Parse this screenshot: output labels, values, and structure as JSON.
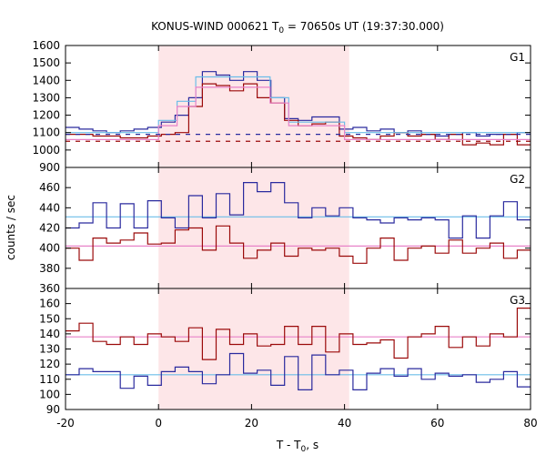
{
  "chart_data": {
    "type": "line",
    "title": "KONUS-WIND 000621 T",
    "title_sub": "0",
    "title_rest": " = 70650s UT (19:37:30.000)",
    "xlabel": "T - T",
    "xlabel_sub": "0",
    "xlabel_rest": ", s",
    "ylabel": "counts / sec",
    "xlim": [
      -20,
      80
    ],
    "xticks": [
      -20,
      0,
      20,
      40,
      60,
      80
    ],
    "highlight_interval": [
      0,
      41
    ],
    "colors": {
      "highlight": "#fde6e8",
      "blue": "#2a2a9e",
      "darkred": "#9b0a0a",
      "lightblue": "#6bbde8",
      "pink": "#e882c8"
    },
    "panels": [
      {
        "label": "G1",
        "ylim": [
          900,
          1600
        ],
        "yticks": [
          900,
          1000,
          1100,
          1200,
          1300,
          1400,
          1500,
          1600
        ],
        "dashed_levels": [
          {
            "color": "blue",
            "value": 1090
          },
          {
            "color": "darkred",
            "value": 1050
          }
        ],
        "series": [
          {
            "color": "blue",
            "step": 2.944,
            "x0": -20,
            "values": [
              1130,
              1120,
              1110,
              1100,
              1110,
              1120,
              1130,
              1160,
              1200,
              1300,
              1450,
              1430,
              1400,
              1450,
              1400,
              1300,
              1180,
              1170,
              1190,
              1190,
              1120,
              1130,
              1110,
              1120,
              1100,
              1110,
              1090,
              1080,
              1090,
              1100,
              1080,
              1090,
              1090,
              1100
            ]
          },
          {
            "color": "darkred",
            "step": 2.944,
            "x0": -20,
            "values": [
              1090,
              1090,
              1080,
              1080,
              1070,
              1070,
              1080,
              1090,
              1100,
              1250,
              1380,
              1370,
              1340,
              1380,
              1300,
              1270,
              1170,
              1140,
              1150,
              1160,
              1080,
              1070,
              1060,
              1080,
              1100,
              1080,
              1090,
              1060,
              1090,
              1030,
              1040,
              1030,
              1090,
              1030
            ]
          },
          {
            "color": "lightblue",
            "step": 4.0,
            "x0": -20,
            "values": [
              1100,
              1100,
              1100,
              1100,
              1100,
              1170,
              1280,
              1420,
              1420,
              1420,
              1420,
              1300,
              1160,
              1160,
              1160,
              1100,
              1100,
              1100,
              1100,
              1100,
              1100,
              1100,
              1100,
              1100,
              1100
            ]
          },
          {
            "color": "pink",
            "step": 4.0,
            "x0": -20,
            "values": [
              1060,
              1060,
              1060,
              1060,
              1060,
              1140,
              1250,
              1360,
              1360,
              1360,
              1360,
              1270,
              1140,
              1140,
              1140,
              1060,
              1060,
              1060,
              1060,
              1060,
              1060,
              1060,
              1060,
              1060,
              1060
            ]
          }
        ]
      },
      {
        "label": "G2",
        "ylim": [
          360,
          480
        ],
        "yticks": [
          360,
          380,
          400,
          420,
          440,
          460
        ],
        "series": [
          {
            "color": "lightblue",
            "step": 100,
            "x0": -20,
            "values": [
              431
            ]
          },
          {
            "color": "pink",
            "step": 100,
            "x0": -20,
            "values": [
              402
            ]
          },
          {
            "color": "blue",
            "step": 2.944,
            "x0": -20,
            "values": [
              420,
              425,
              445,
              420,
              444,
              420,
              447,
              430,
              420,
              452,
              430,
              454,
              433,
              465,
              456,
              465,
              445,
              430,
              440,
              432,
              440,
              430,
              428,
              425,
              430,
              428,
              430,
              428,
              410,
              432,
              410,
              432,
              446,
              428
            ]
          },
          {
            "color": "darkred",
            "step": 2.944,
            "x0": -20,
            "values": [
              400,
              388,
              410,
              405,
              408,
              415,
              404,
              405,
              418,
              420,
              398,
              422,
              405,
              390,
              398,
              405,
              392,
              400,
              398,
              400,
              392,
              385,
              400,
              410,
              388,
              400,
              402,
              395,
              408,
              395,
              400,
              405,
              390,
              398
            ]
          }
        ]
      },
      {
        "label": "G3",
        "ylim": [
          90,
          170
        ],
        "yticks": [
          90,
          100,
          110,
          120,
          130,
          140,
          150,
          160
        ],
        "series": [
          {
            "color": "lightblue",
            "step": 100,
            "x0": -20,
            "values": [
              113
            ]
          },
          {
            "color": "pink",
            "step": 100,
            "x0": -20,
            "values": [
              138
            ]
          },
          {
            "color": "darkred",
            "step": 2.944,
            "x0": -20,
            "values": [
              142,
              147,
              135,
              133,
              138,
              133,
              140,
              138,
              135,
              144,
              123,
              143,
              133,
              140,
              132,
              133,
              145,
              133,
              145,
              128,
              140,
              133,
              134,
              136,
              124,
              138,
              140,
              145,
              131,
              138,
              132,
              140,
              138,
              157
            ]
          },
          {
            "color": "blue",
            "step": 2.944,
            "x0": -20,
            "values": [
              113,
              117,
              115,
              115,
              104,
              112,
              106,
              115,
              118,
              115,
              107,
              113,
              127,
              114,
              116,
              106,
              125,
              103,
              126,
              113,
              116,
              103,
              114,
              117,
              112,
              117,
              110,
              114,
              112,
              113,
              108,
              110,
              115,
              105
            ]
          }
        ]
      }
    ]
  }
}
